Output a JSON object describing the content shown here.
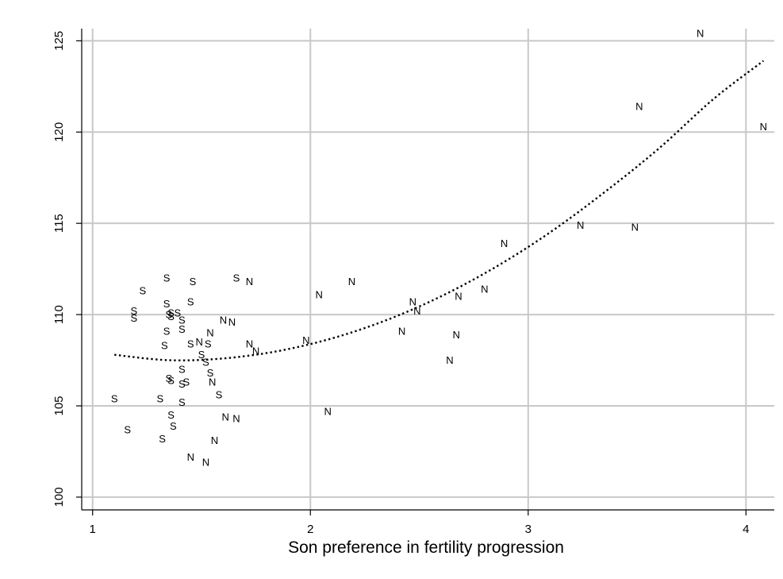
{
  "chart_data": {
    "type": "scatter",
    "title": "",
    "xlabel": "Son preference in fertility progression",
    "ylabel": "",
    "xlim": [
      0.95,
      4.13
    ],
    "ylim": [
      99.3,
      126.8
    ],
    "xticks": [
      "1",
      "2",
      "3",
      "4"
    ],
    "yticks": [
      "100",
      "105",
      "110",
      "115",
      "120",
      "125"
    ],
    "grid": true,
    "legend": "none",
    "series": [
      {
        "marker": "S",
        "points": [
          [
            1.1,
            105.4
          ],
          [
            1.16,
            103.7
          ],
          [
            1.19,
            110.2
          ],
          [
            1.19,
            109.8
          ],
          [
            1.23,
            111.3
          ],
          [
            1.31,
            105.4
          ],
          [
            1.32,
            103.2
          ],
          [
            1.33,
            108.3
          ],
          [
            1.34,
            112.0
          ],
          [
            1.34,
            110.6
          ],
          [
            1.34,
            109.1
          ],
          [
            1.35,
            110.0
          ],
          [
            1.35,
            106.5
          ],
          [
            1.36,
            110.1
          ],
          [
            1.36,
            109.9
          ],
          [
            1.36,
            106.4
          ],
          [
            1.36,
            104.5
          ],
          [
            1.37,
            103.9
          ],
          [
            1.39,
            110.1
          ],
          [
            1.41,
            109.7
          ],
          [
            1.41,
            109.2
          ],
          [
            1.41,
            107.0
          ],
          [
            1.41,
            106.2
          ],
          [
            1.41,
            105.2
          ],
          [
            1.43,
            106.3
          ],
          [
            1.45,
            110.7
          ],
          [
            1.45,
            108.4
          ],
          [
            1.46,
            111.8
          ],
          [
            1.5,
            107.8
          ],
          [
            1.52,
            107.4
          ],
          [
            1.53,
            108.4
          ],
          [
            1.54,
            106.8
          ],
          [
            1.58,
            105.6
          ],
          [
            1.66,
            112.0
          ]
        ]
      },
      {
        "marker": "N",
        "points": [
          [
            1.45,
            102.2
          ],
          [
            1.49,
            108.5
          ],
          [
            1.52,
            101.9
          ],
          [
            1.54,
            109.0
          ],
          [
            1.55,
            106.3
          ],
          [
            1.56,
            103.1
          ],
          [
            1.6,
            109.7
          ],
          [
            1.61,
            104.4
          ],
          [
            1.64,
            109.6
          ],
          [
            1.66,
            104.3
          ],
          [
            1.72,
            111.8
          ],
          [
            1.72,
            108.4
          ],
          [
            1.75,
            108.0
          ],
          [
            1.98,
            108.6
          ],
          [
            2.04,
            111.1
          ],
          [
            2.08,
            104.7
          ],
          [
            2.19,
            111.8
          ],
          [
            2.42,
            109.1
          ],
          [
            2.47,
            110.7
          ],
          [
            2.49,
            110.2
          ],
          [
            2.64,
            107.5
          ],
          [
            2.67,
            108.9
          ],
          [
            2.68,
            111.0
          ],
          [
            2.8,
            111.4
          ],
          [
            2.89,
            113.9
          ],
          [
            3.24,
            114.9
          ],
          [
            3.49,
            114.8
          ],
          [
            3.51,
            121.4
          ],
          [
            3.79,
            125.4
          ],
          [
            4.08,
            120.3
          ]
        ]
      }
    ],
    "fit_curve": {
      "style": "dotted",
      "x": [
        1.1,
        1.35,
        1.6,
        1.85,
        2.1,
        2.35,
        2.6,
        2.85,
        3.1,
        3.35,
        3.6,
        3.85,
        4.08
      ],
      "y": [
        107.8,
        107.5,
        107.6,
        108.0,
        108.7,
        109.7,
        111.0,
        112.6,
        114.5,
        116.7,
        119.1,
        121.8,
        123.9
      ]
    }
  }
}
